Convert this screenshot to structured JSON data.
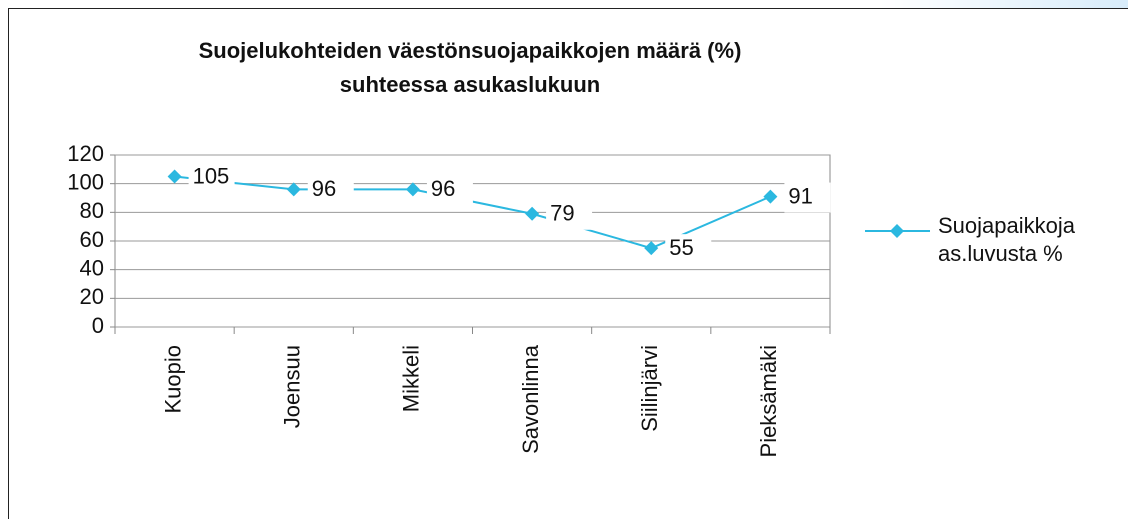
{
  "chart_data": {
    "type": "line",
    "title": "Suojelukohteiden väestönsuojapaikkojen määrä (%) suhteessa asukaslukuun",
    "categories": [
      "Kuopio",
      "Joensuu",
      "Mikkeli",
      "Savonlinna",
      "Siilinjärvi",
      "Pieksämäki"
    ],
    "series": [
      {
        "name": "Suojapaikkoja as.luvusta %",
        "color": "#2bb8e0",
        "values": [
          105,
          96,
          96,
          79,
          55,
          91
        ]
      }
    ],
    "ylim": [
      0,
      120
    ],
    "yticks": [
      0,
      20,
      40,
      60,
      80,
      100,
      120
    ],
    "grid": true,
    "legend": "right"
  }
}
